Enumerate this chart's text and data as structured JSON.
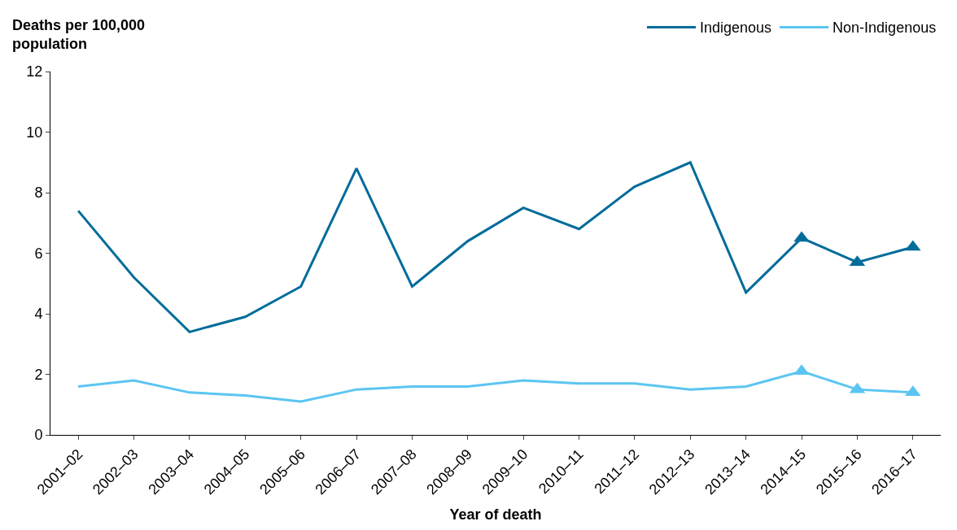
{
  "chart_data": {
    "type": "line",
    "xlabel": "Year of death",
    "ylabel": "Deaths per 100,000 population",
    "categories": [
      "2001–02",
      "2002–03",
      "2003–04",
      "2004–05",
      "2005–06",
      "2006–07",
      "2007–08",
      "2008–09",
      "2009–10",
      "2010–11",
      "2011–12",
      "2012–13",
      "2013–14",
      "2014–15",
      "2015–16",
      "2016–17"
    ],
    "series": [
      {
        "name": "Indigenous",
        "color": "#006c9a",
        "values": [
          7.4,
          5.2,
          3.4,
          3.9,
          4.9,
          8.8,
          4.9,
          6.4,
          7.5,
          6.8,
          8.2,
          9.0,
          4.7,
          6.5,
          5.7,
          6.2
        ]
      },
      {
        "name": "Non-Indigenous",
        "color": "#5bc5f2",
        "values": [
          1.6,
          1.8,
          1.4,
          1.3,
          1.1,
          1.5,
          1.6,
          1.6,
          1.8,
          1.7,
          1.7,
          1.5,
          1.6,
          2.1,
          1.5,
          1.4
        ]
      },
      {
        "type": "scatter",
        "marker": "triangle",
        "color": "#006c9a",
        "values": [
          null,
          null,
          null,
          null,
          null,
          null,
          null,
          null,
          null,
          null,
          null,
          null,
          null,
          6.5,
          5.7,
          6.2
        ]
      },
      {
        "type": "scatter",
        "marker": "triangle",
        "color": "#5bc5f2",
        "values": [
          null,
          null,
          null,
          null,
          null,
          null,
          null,
          null,
          null,
          null,
          null,
          null,
          null,
          2.1,
          1.5,
          1.4
        ]
      }
    ],
    "ylim": [
      0,
      12
    ],
    "yticks": [
      0,
      2,
      4,
      6,
      8,
      10,
      12
    ],
    "legend": "top right",
    "marker": "none",
    "line_style": "solid"
  }
}
